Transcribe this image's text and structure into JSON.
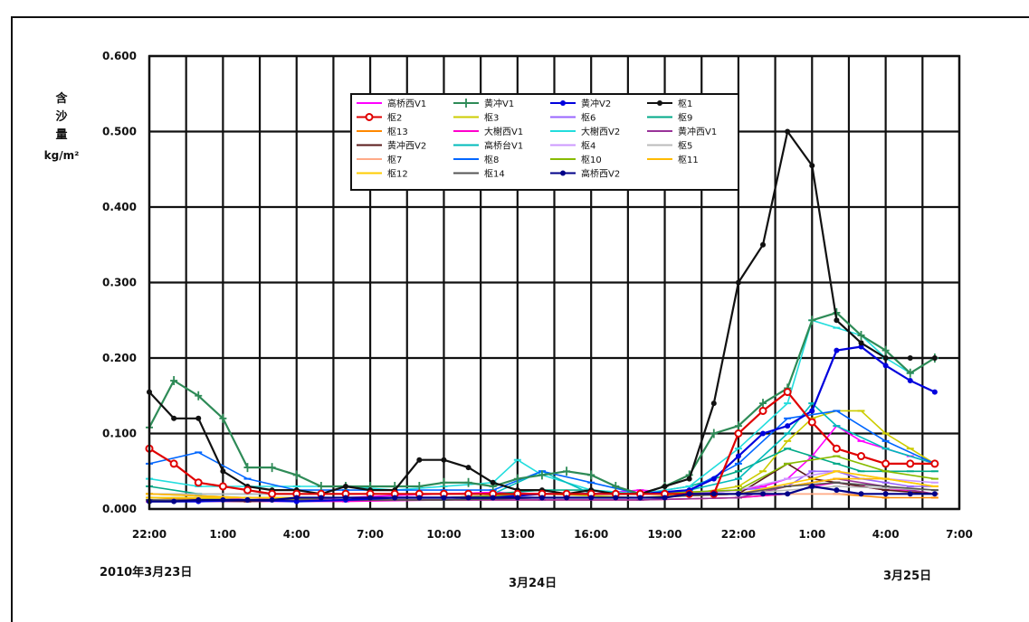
{
  "ylabel": {
    "line1": "含",
    "line2": "沙",
    "line3": "量",
    "unit": "kg/m²"
  },
  "dates": {
    "d1": "2010年3月23日",
    "d2": "3月24日",
    "d3": "3月25日"
  },
  "chart_data": {
    "type": "line",
    "ylim": [
      0,
      0.6
    ],
    "yticks": [
      "0.000",
      "0.100",
      "0.200",
      "0.300",
      "0.400",
      "0.500",
      "0.600"
    ],
    "xlim": [
      0,
      33
    ],
    "xticks": [
      "22:00",
      "1:00",
      "4:00",
      "7:00",
      "10:00",
      "13:00",
      "16:00",
      "19:00",
      "22:00",
      "1:00",
      "4:00",
      "7:00"
    ],
    "legend_position": "top-center",
    "grid": true,
    "series": [
      {
        "name": "高桥西V1",
        "color": "#ff00ff",
        "marker": "dash",
        "x": [
          0,
          2,
          4,
          6,
          8,
          10,
          12,
          14,
          16,
          18,
          20,
          22,
          24,
          25,
          26,
          27,
          28,
          29,
          30,
          31,
          32
        ],
        "y": [
          0.01,
          0.01,
          0.015,
          0.012,
          0.015,
          0.018,
          0.02,
          0.022,
          0.02,
          0.02,
          0.025,
          0.02,
          0.025,
          0.03,
          0.04,
          0.07,
          0.11,
          0.09,
          0.08,
          0.07,
          0.06
        ]
      },
      {
        "name": "黄冲V1",
        "color": "#2e8b57",
        "marker": "plus",
        "x": [
          0,
          1,
          2,
          3,
          4,
          5,
          6,
          7,
          8,
          9,
          10,
          11,
          12,
          13,
          14,
          15,
          16,
          17,
          18,
          19,
          20,
          21,
          22,
          23,
          24,
          25,
          26,
          27,
          28,
          29,
          30,
          31,
          32
        ],
        "y": [
          0.108,
          0.17,
          0.15,
          0.12,
          0.055,
          0.055,
          0.045,
          0.03,
          0.03,
          0.03,
          0.03,
          0.03,
          0.035,
          0.035,
          0.03,
          0.04,
          0.045,
          0.05,
          0.045,
          0.03,
          0.02,
          0.03,
          0.045,
          0.1,
          0.11,
          0.14,
          0.16,
          0.25,
          0.26,
          0.23,
          0.21,
          0.18,
          0.2
        ]
      },
      {
        "name": "黄冲V2",
        "color": "#0000dd",
        "marker": "dot",
        "x": [
          0,
          2,
          4,
          6,
          8,
          10,
          12,
          14,
          16,
          18,
          20,
          22,
          23,
          24,
          25,
          26,
          27,
          28,
          29,
          30,
          31,
          32
        ],
        "y": [
          0.01,
          0.01,
          0.012,
          0.01,
          0.012,
          0.015,
          0.015,
          0.015,
          0.02,
          0.02,
          0.02,
          0.025,
          0.04,
          0.07,
          0.1,
          0.11,
          0.13,
          0.21,
          0.215,
          0.19,
          0.17,
          0.155
        ]
      },
      {
        "name": "枢1",
        "color": "#111111",
        "marker": "dot",
        "x": [
          0,
          1,
          2,
          3,
          4,
          5,
          6,
          7,
          8,
          9,
          10,
          11,
          12,
          13,
          14,
          15,
          16,
          17,
          18,
          19,
          20,
          21,
          22,
          23,
          24,
          25,
          26,
          27,
          28,
          29,
          30,
          31,
          32
        ],
        "y": [
          0.155,
          0.12,
          0.12,
          0.05,
          0.03,
          0.025,
          0.025,
          0.02,
          0.03,
          0.025,
          0.025,
          0.065,
          0.065,
          0.055,
          0.035,
          0.025,
          0.025,
          0.02,
          0.025,
          0.02,
          0.02,
          0.03,
          0.04,
          0.14,
          0.3,
          0.35,
          0.5,
          0.455,
          0.25,
          0.22,
          0.2,
          0.2,
          0.2
        ]
      },
      {
        "name": "枢2",
        "color": "#e00000",
        "marker": "ring",
        "x": [
          0,
          1,
          2,
          3,
          4,
          5,
          6,
          7,
          8,
          9,
          10,
          11,
          12,
          13,
          14,
          15,
          16,
          17,
          18,
          19,
          20,
          21,
          22,
          23,
          24,
          25,
          26,
          27,
          28,
          29,
          30,
          31,
          32
        ],
        "y": [
          0.08,
          0.06,
          0.035,
          0.03,
          0.025,
          0.02,
          0.02,
          0.02,
          0.02,
          0.02,
          0.02,
          0.02,
          0.02,
          0.02,
          0.02,
          0.02,
          0.02,
          0.02,
          0.02,
          0.02,
          0.02,
          0.02,
          0.02,
          0.02,
          0.1,
          0.13,
          0.155,
          0.115,
          0.08,
          0.07,
          0.06,
          0.06,
          0.06
        ]
      },
      {
        "name": "枢3",
        "color": "#cccc00",
        "marker": "dash",
        "x": [
          0,
          4,
          8,
          12,
          16,
          20,
          22,
          24,
          25,
          26,
          27,
          28,
          29,
          30,
          31,
          32
        ],
        "y": [
          0.015,
          0.012,
          0.015,
          0.015,
          0.02,
          0.015,
          0.02,
          0.03,
          0.05,
          0.09,
          0.12,
          0.13,
          0.13,
          0.1,
          0.08,
          0.06
        ]
      },
      {
        "name": "枢6",
        "color": "#9966ff",
        "marker": "dash",
        "x": [
          0,
          4,
          8,
          12,
          16,
          20,
          22,
          24,
          26,
          27,
          28,
          29,
          30,
          31,
          32
        ],
        "y": [
          0.02,
          0.015,
          0.015,
          0.015,
          0.02,
          0.02,
          0.02,
          0.025,
          0.03,
          0.05,
          0.05,
          0.04,
          0.035,
          0.03,
          0.03
        ]
      },
      {
        "name": "枢9",
        "color": "#00aa88",
        "marker": "dash",
        "x": [
          0,
          2,
          4,
          6,
          8,
          10,
          12,
          14,
          16,
          18,
          20,
          22,
          24,
          26,
          28,
          29,
          30,
          31,
          32
        ],
        "y": [
          0.03,
          0.02,
          0.02,
          0.02,
          0.02,
          0.02,
          0.02,
          0.02,
          0.025,
          0.025,
          0.02,
          0.03,
          0.05,
          0.08,
          0.06,
          0.05,
          0.05,
          0.05,
          0.05
        ]
      },
      {
        "name": "枢13",
        "color": "#ff8800",
        "marker": "dash",
        "x": [
          0,
          4,
          8,
          12,
          16,
          20,
          24,
          26,
          28,
          30,
          32
        ],
        "y": [
          0.015,
          0.01,
          0.012,
          0.012,
          0.012,
          0.012,
          0.015,
          0.02,
          0.02,
          0.015,
          0.015
        ]
      },
      {
        "name": "大榭西V1",
        "color": "#ff00cc",
        "marker": "dash",
        "x": [
          0,
          4,
          8,
          12,
          16,
          20,
          24,
          26,
          27,
          28,
          29,
          30,
          31,
          32
        ],
        "y": [
          0.01,
          0.01,
          0.01,
          0.012,
          0.012,
          0.012,
          0.015,
          0.02,
          0.03,
          0.035,
          0.03,
          0.025,
          0.025,
          0.02
        ]
      },
      {
        "name": "大榭西V2",
        "color": "#22dddd",
        "marker": "dash",
        "x": [
          0,
          2,
          4,
          6,
          8,
          10,
          12,
          14,
          15,
          16,
          18,
          20,
          22,
          24,
          26,
          27,
          28,
          29,
          30,
          31,
          32
        ],
        "y": [
          0.04,
          0.03,
          0.03,
          0.03,
          0.03,
          0.025,
          0.03,
          0.035,
          0.065,
          0.045,
          0.025,
          0.02,
          0.03,
          0.08,
          0.14,
          0.25,
          0.24,
          0.23,
          0.2,
          0.18,
          0.2
        ]
      },
      {
        "name": "黄冲西V1",
        "color": "#993399",
        "marker": "dash",
        "x": [
          0,
          4,
          8,
          12,
          16,
          20,
          24,
          26,
          28,
          30,
          32
        ],
        "y": [
          0.01,
          0.01,
          0.012,
          0.012,
          0.012,
          0.012,
          0.015,
          0.03,
          0.04,
          0.03,
          0.02
        ]
      },
      {
        "name": "黄冲西V2",
        "color": "#5a1a1a",
        "marker": "dash",
        "x": [
          0,
          4,
          8,
          12,
          16,
          20,
          24,
          26,
          27,
          28,
          30,
          32
        ],
        "y": [
          0.012,
          0.01,
          0.012,
          0.012,
          0.015,
          0.015,
          0.02,
          0.06,
          0.04,
          0.035,
          0.025,
          0.02
        ]
      },
      {
        "name": "高桥台V1",
        "color": "#00bbbb",
        "marker": "dash",
        "x": [
          0,
          2,
          4,
          6,
          8,
          10,
          12,
          14,
          16,
          18,
          20,
          22,
          24,
          26,
          27,
          28,
          30,
          32
        ],
        "y": [
          0.02,
          0.02,
          0.02,
          0.02,
          0.02,
          0.02,
          0.02,
          0.02,
          0.05,
          0.02,
          0.02,
          0.025,
          0.04,
          0.1,
          0.14,
          0.11,
          0.08,
          0.06
        ]
      },
      {
        "name": "枢4",
        "color": "#cc99ff",
        "marker": "dash",
        "x": [
          0,
          4,
          8,
          12,
          16,
          20,
          24,
          26,
          28,
          30,
          32
        ],
        "y": [
          0.015,
          0.015,
          0.015,
          0.015,
          0.02,
          0.02,
          0.025,
          0.04,
          0.05,
          0.04,
          0.035
        ]
      },
      {
        "name": "枢5",
        "color": "#bbbbbb",
        "marker": "dash",
        "x": [
          0,
          4,
          8,
          12,
          16,
          20,
          24,
          28,
          32
        ],
        "y": [
          0.02,
          0.02,
          0.02,
          0.02,
          0.02,
          0.02,
          0.02,
          0.03,
          0.025
        ]
      },
      {
        "name": "枢7",
        "color": "#ffaa88",
        "marker": "dash",
        "x": [
          0,
          4,
          8,
          12,
          16,
          20,
          24,
          28,
          32
        ],
        "y": [
          0.02,
          0.015,
          0.015,
          0.015,
          0.015,
          0.015,
          0.02,
          0.02,
          0.02
        ]
      },
      {
        "name": "枢8",
        "color": "#0066ff",
        "marker": "dash",
        "x": [
          0,
          2,
          4,
          6,
          8,
          10,
          12,
          14,
          16,
          18,
          20,
          22,
          24,
          26,
          28,
          30,
          32
        ],
        "y": [
          0.06,
          0.075,
          0.04,
          0.025,
          0.025,
          0.025,
          0.025,
          0.025,
          0.05,
          0.035,
          0.02,
          0.025,
          0.06,
          0.12,
          0.13,
          0.09,
          0.06
        ]
      },
      {
        "name": "枢10",
        "color": "#88bb00",
        "marker": "dash",
        "x": [
          0,
          4,
          8,
          12,
          16,
          20,
          24,
          26,
          28,
          30,
          32
        ],
        "y": [
          0.015,
          0.015,
          0.015,
          0.015,
          0.02,
          0.02,
          0.025,
          0.06,
          0.07,
          0.05,
          0.04
        ]
      },
      {
        "name": "枢11",
        "color": "#ffbb00",
        "marker": "dash",
        "x": [
          0,
          4,
          8,
          12,
          16,
          20,
          24,
          26,
          28,
          30,
          32
        ],
        "y": [
          0.02,
          0.015,
          0.015,
          0.015,
          0.015,
          0.015,
          0.02,
          0.03,
          0.04,
          0.04,
          0.03
        ]
      },
      {
        "name": "枢12",
        "color": "#ffcc00",
        "marker": "dash",
        "x": [
          0,
          4,
          8,
          12,
          16,
          20,
          24,
          27,
          28,
          30,
          32
        ],
        "y": [
          0.015,
          0.015,
          0.015,
          0.015,
          0.015,
          0.015,
          0.02,
          0.04,
          0.05,
          0.04,
          0.03
        ]
      },
      {
        "name": "枢14",
        "color": "#555555",
        "marker": "dash",
        "x": [
          0,
          4,
          8,
          12,
          16,
          20,
          24,
          26,
          28,
          30,
          32
        ],
        "y": [
          0.012,
          0.012,
          0.012,
          0.012,
          0.015,
          0.015,
          0.02,
          0.03,
          0.035,
          0.03,
          0.025
        ]
      },
      {
        "name": "高桥西V2",
        "color": "#000088",
        "marker": "dot",
        "x": [
          0,
          1,
          2,
          3,
          4,
          5,
          6,
          7,
          8,
          9,
          10,
          11,
          12,
          13,
          14,
          15,
          16,
          17,
          18,
          19,
          20,
          21,
          22,
          23,
          24,
          25,
          26,
          27,
          28,
          29,
          30,
          31,
          32
        ],
        "y": [
          0.01,
          0.01,
          0.012,
          0.012,
          0.012,
          0.012,
          0.015,
          0.015,
          0.015,
          0.015,
          0.015,
          0.015,
          0.015,
          0.015,
          0.015,
          0.015,
          0.015,
          0.015,
          0.015,
          0.015,
          0.015,
          0.015,
          0.02,
          0.02,
          0.02,
          0.02,
          0.02,
          0.03,
          0.025,
          0.02,
          0.02,
          0.02,
          0.02
        ]
      }
    ]
  }
}
